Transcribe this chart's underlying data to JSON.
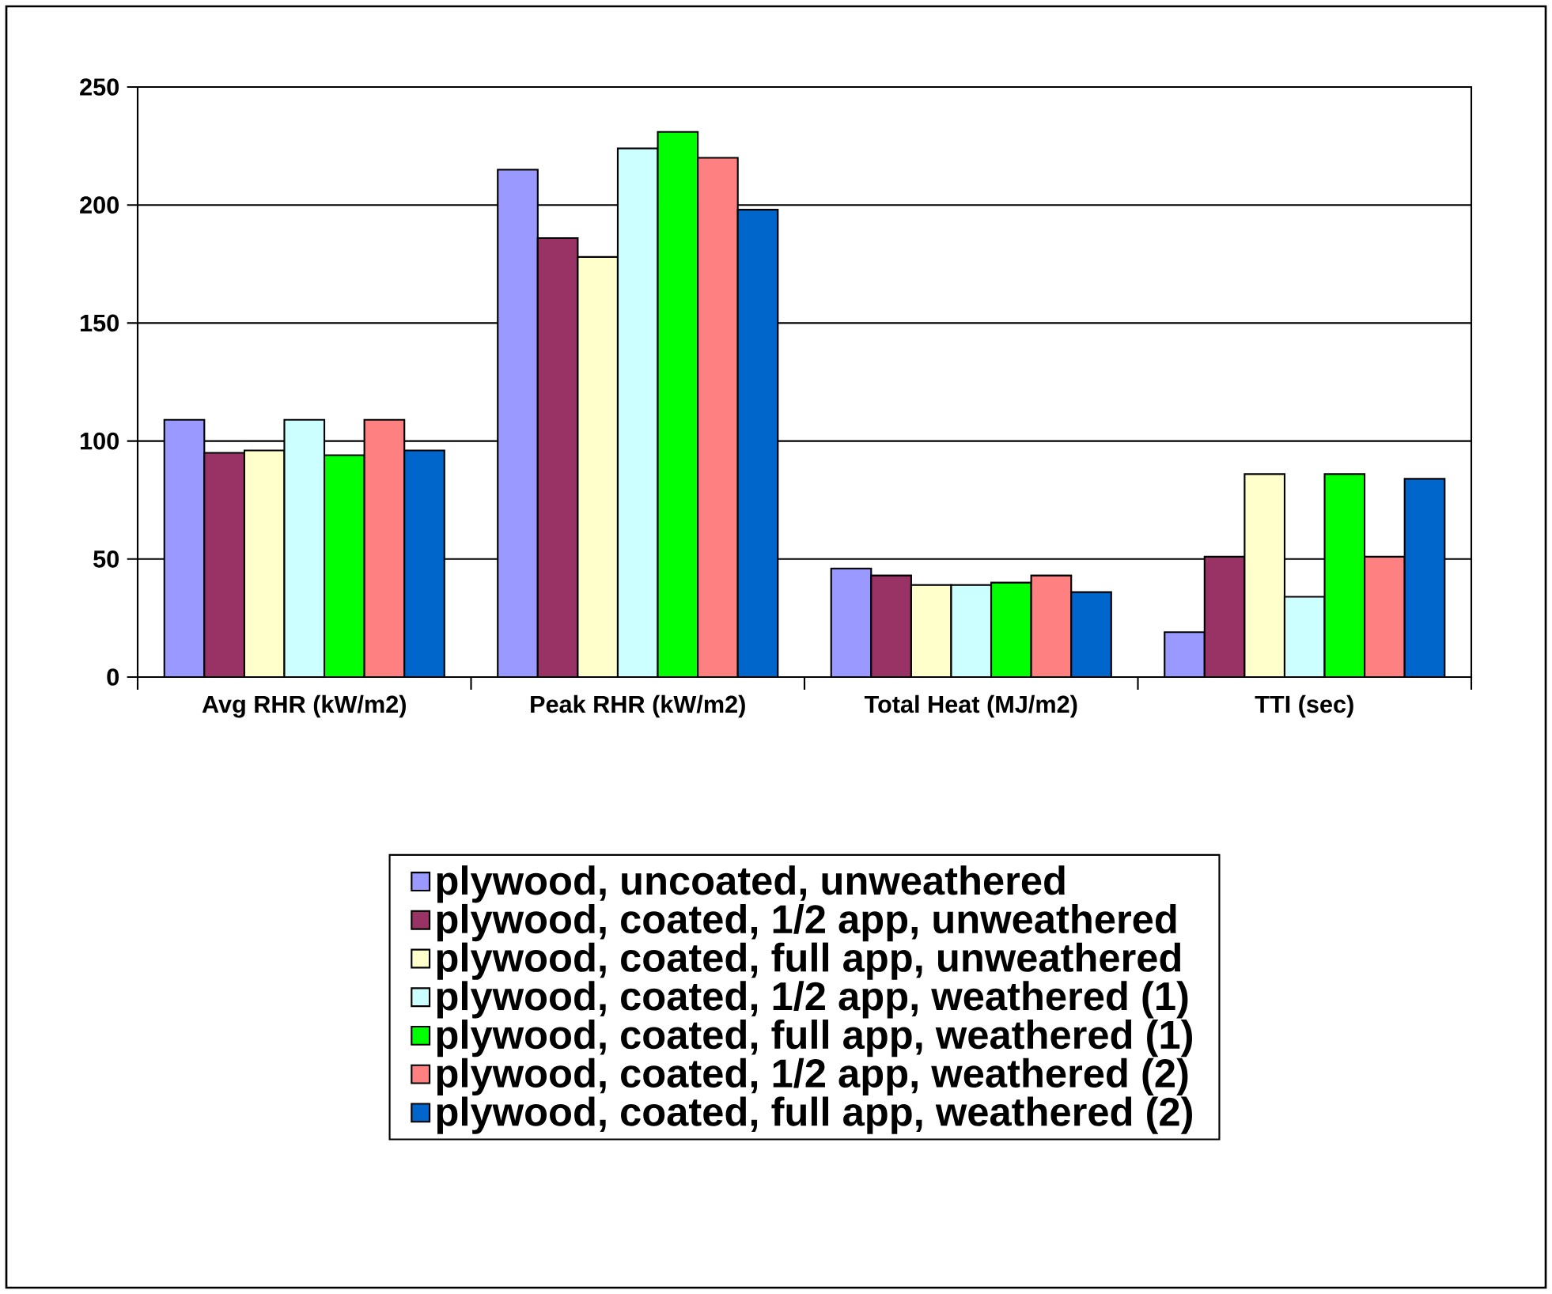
{
  "chart_data": {
    "type": "bar",
    "categories": [
      "Avg RHR (kW/m2)",
      "Peak RHR (kW/m2)",
      "Total Heat (MJ/m2)",
      "TTI (sec)"
    ],
    "series": [
      {
        "name": "plywood, uncoated, unweathered",
        "color": "#9999ff",
        "values": [
          109,
          215,
          46,
          19
        ]
      },
      {
        "name": "plywood, coated, 1/2 app, unweathered",
        "color": "#993366",
        "values": [
          95,
          186,
          43,
          51
        ]
      },
      {
        "name": "plywood, coated, full app, unweathered",
        "color": "#ffffcc",
        "values": [
          96,
          178,
          39,
          86
        ]
      },
      {
        "name": "plywood, coated, 1/2 app, weathered (1)",
        "color": "#ccffff",
        "values": [
          109,
          224,
          39,
          34
        ]
      },
      {
        "name": "plywood, coated, full app, weathered (1)",
        "color": "#00ff00",
        "values": [
          94,
          231,
          40,
          86
        ]
      },
      {
        "name": "plywood, coated, 1/2 app, weathered (2)",
        "color": "#ff8080",
        "values": [
          109,
          220,
          43,
          51
        ]
      },
      {
        "name": "plywood, coated, full app, weathered (2)",
        "color": "#0066cc",
        "values": [
          96,
          198,
          36,
          84
        ]
      }
    ],
    "ylim": [
      0,
      250
    ],
    "yticks": [
      0,
      50,
      100,
      150,
      200,
      250
    ],
    "grid": "y",
    "legend": "bottom"
  }
}
